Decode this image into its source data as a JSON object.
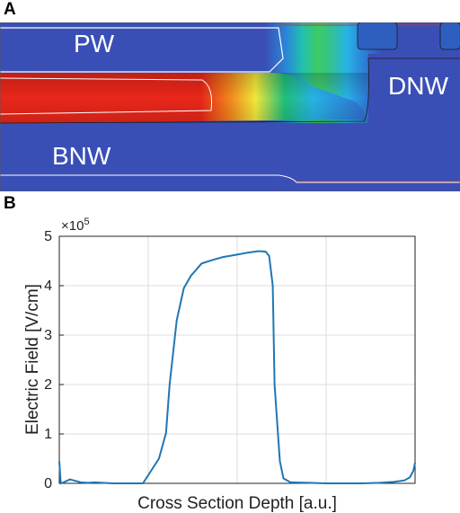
{
  "panel_a": {
    "letter": "A",
    "labels": {
      "pw": "PW",
      "dnw": "DNW",
      "bnw": "BNW"
    },
    "colors": {
      "blue": "#3a4fb6",
      "red": "#e8261a",
      "orange": "#f2861d",
      "yellow": "#f3e83a",
      "green": "#1fbf7a",
      "cyan": "#27b3e6"
    }
  },
  "panel_b": {
    "letter": "B",
    "chart_data": {
      "type": "line",
      "title": "",
      "xlabel": "Cross Section Depth [a.u.]",
      "ylabel": "Electric Field [V/cm]",
      "y_multiplier": "×10",
      "y_multiplier_exp": "5",
      "ylim": [
        0,
        5
      ],
      "xlim": [
        0,
        1
      ],
      "yticks": [
        "0",
        "1",
        "2",
        "3",
        "4",
        "5"
      ],
      "xtick_labels_shown": false,
      "grid": true,
      "line_color": "#1f77b4",
      "series": [
        {
          "x": [
            0.0,
            0.004,
            0.012,
            0.03,
            0.04,
            0.06,
            0.08,
            0.1,
            0.15,
            0.2,
            0.235,
            0.28,
            0.3,
            0.31,
            0.33,
            0.35,
            0.37,
            0.4,
            0.43,
            0.46,
            0.5,
            0.53,
            0.56,
            0.58,
            0.59,
            0.6,
            0.605,
            0.62,
            0.63,
            0.65,
            0.7,
            0.75,
            0.8,
            0.85,
            0.9,
            0.94,
            0.97,
            0.985,
            0.995,
            1.0
          ],
          "y": [
            0.45,
            0.0,
            0.02,
            0.08,
            0.06,
            0.02,
            0.01,
            0.02,
            0.0,
            0.0,
            0.0,
            0.5,
            1.02,
            2.0,
            3.3,
            3.95,
            4.2,
            4.45,
            4.52,
            4.58,
            4.63,
            4.67,
            4.7,
            4.69,
            4.6,
            4.0,
            2.0,
            0.45,
            0.1,
            0.02,
            0.01,
            0.0,
            0.0,
            0.0,
            0.01,
            0.03,
            0.06,
            0.12,
            0.25,
            0.42
          ]
        }
      ]
    }
  }
}
